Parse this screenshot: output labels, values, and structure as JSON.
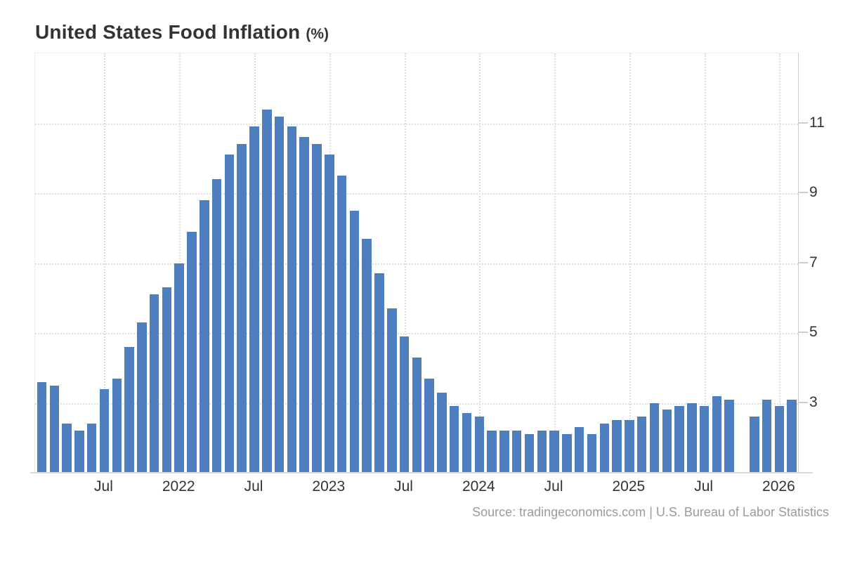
{
  "header": {
    "title": "United States Food Inflation",
    "unit_suffix": "(%)"
  },
  "footer": {
    "source_text": "Source: tradingeconomics.com | U.S. Bureau of Labor Statistics"
  },
  "colors": {
    "bar": "#4d7ebd",
    "gridline": "#e0e0e0",
    "axis": "#cccccc",
    "label": "#333333",
    "source_text": "#9b9b9b"
  },
  "chart_data": {
    "type": "bar",
    "title": "United States Food Inflation (%)",
    "xlabel": "",
    "ylabel": "",
    "ylim": [
      1,
      13
    ],
    "y_ticks": [
      3,
      5,
      7,
      9,
      11
    ],
    "grid": true,
    "legend": false,
    "note": "One bar missing between Sep 2025 and Nov 2025 (Oct 2025 value not published)",
    "x_tick_labels": [
      {
        "index": 5,
        "label": "Jul"
      },
      {
        "index": 11,
        "label": "2022"
      },
      {
        "index": 17,
        "label": "Jul"
      },
      {
        "index": 23,
        "label": "2023"
      },
      {
        "index": 29,
        "label": "Jul"
      },
      {
        "index": 35,
        "label": "2024"
      },
      {
        "index": 41,
        "label": "Jul"
      },
      {
        "index": 47,
        "label": "2025"
      },
      {
        "index": 53,
        "label": "Jul"
      },
      {
        "index": 59,
        "label": "2026"
      }
    ],
    "bars": [
      {
        "month": "Feb 2021",
        "value": 3.6
      },
      {
        "month": "Mar 2021",
        "value": 3.5
      },
      {
        "month": "Apr 2021",
        "value": 2.4
      },
      {
        "month": "May 2021",
        "value": 2.2
      },
      {
        "month": "Jun 2021",
        "value": 2.4
      },
      {
        "month": "Jul 2021",
        "value": 3.4
      },
      {
        "month": "Aug 2021",
        "value": 3.7
      },
      {
        "month": "Sep 2021",
        "value": 4.6
      },
      {
        "month": "Oct 2021",
        "value": 5.3
      },
      {
        "month": "Nov 2021",
        "value": 6.1
      },
      {
        "month": "Dec 2021",
        "value": 6.3
      },
      {
        "month": "Jan 2022",
        "value": 7.0
      },
      {
        "month": "Feb 2022",
        "value": 7.9
      },
      {
        "month": "Mar 2022",
        "value": 8.8
      },
      {
        "month": "Apr 2022",
        "value": 9.4
      },
      {
        "month": "May 2022",
        "value": 10.1
      },
      {
        "month": "Jun 2022",
        "value": 10.4
      },
      {
        "month": "Jul 2022",
        "value": 10.9
      },
      {
        "month": "Aug 2022",
        "value": 11.4
      },
      {
        "month": "Sep 2022",
        "value": 11.2
      },
      {
        "month": "Oct 2022",
        "value": 10.9
      },
      {
        "month": "Nov 2022",
        "value": 10.6
      },
      {
        "month": "Dec 2022",
        "value": 10.4
      },
      {
        "month": "Jan 2023",
        "value": 10.1
      },
      {
        "month": "Feb 2023",
        "value": 9.5
      },
      {
        "month": "Mar 2023",
        "value": 8.5
      },
      {
        "month": "Apr 2023",
        "value": 7.7
      },
      {
        "month": "May 2023",
        "value": 6.7
      },
      {
        "month": "Jun 2023",
        "value": 5.7
      },
      {
        "month": "Jul 2023",
        "value": 4.9
      },
      {
        "month": "Aug 2023",
        "value": 4.3
      },
      {
        "month": "Sep 2023",
        "value": 3.7
      },
      {
        "month": "Oct 2023",
        "value": 3.3
      },
      {
        "month": "Nov 2023",
        "value": 2.9
      },
      {
        "month": "Dec 2023",
        "value": 2.7
      },
      {
        "month": "Jan 2024",
        "value": 2.6
      },
      {
        "month": "Feb 2024",
        "value": 2.2
      },
      {
        "month": "Mar 2024",
        "value": 2.2
      },
      {
        "month": "Apr 2024",
        "value": 2.2
      },
      {
        "month": "May 2024",
        "value": 2.1
      },
      {
        "month": "Jun 2024",
        "value": 2.2
      },
      {
        "month": "Jul 2024",
        "value": 2.2
      },
      {
        "month": "Aug 2024",
        "value": 2.1
      },
      {
        "month": "Sep 2024",
        "value": 2.3
      },
      {
        "month": "Oct 2024",
        "value": 2.1
      },
      {
        "month": "Nov 2024",
        "value": 2.4
      },
      {
        "month": "Dec 2024",
        "value": 2.5
      },
      {
        "month": "Jan 2025",
        "value": 2.5
      },
      {
        "month": "Feb 2025",
        "value": 2.6
      },
      {
        "month": "Mar 2025",
        "value": 3.0
      },
      {
        "month": "Apr 2025",
        "value": 2.8
      },
      {
        "month": "May 2025",
        "value": 2.9
      },
      {
        "month": "Jun 2025",
        "value": 3.0
      },
      {
        "month": "Jul 2025",
        "value": 2.9
      },
      {
        "month": "Aug 2025",
        "value": 3.2
      },
      {
        "month": "Sep 2025",
        "value": 3.1
      },
      {
        "month": "Oct 2025",
        "value": null
      },
      {
        "month": "Nov 2025",
        "value": 2.6
      },
      {
        "month": "Dec 2025",
        "value": 3.1
      },
      {
        "month": "Jan 2026",
        "value": 2.9
      },
      {
        "month": "Feb 2026",
        "value": 3.1
      }
    ]
  }
}
